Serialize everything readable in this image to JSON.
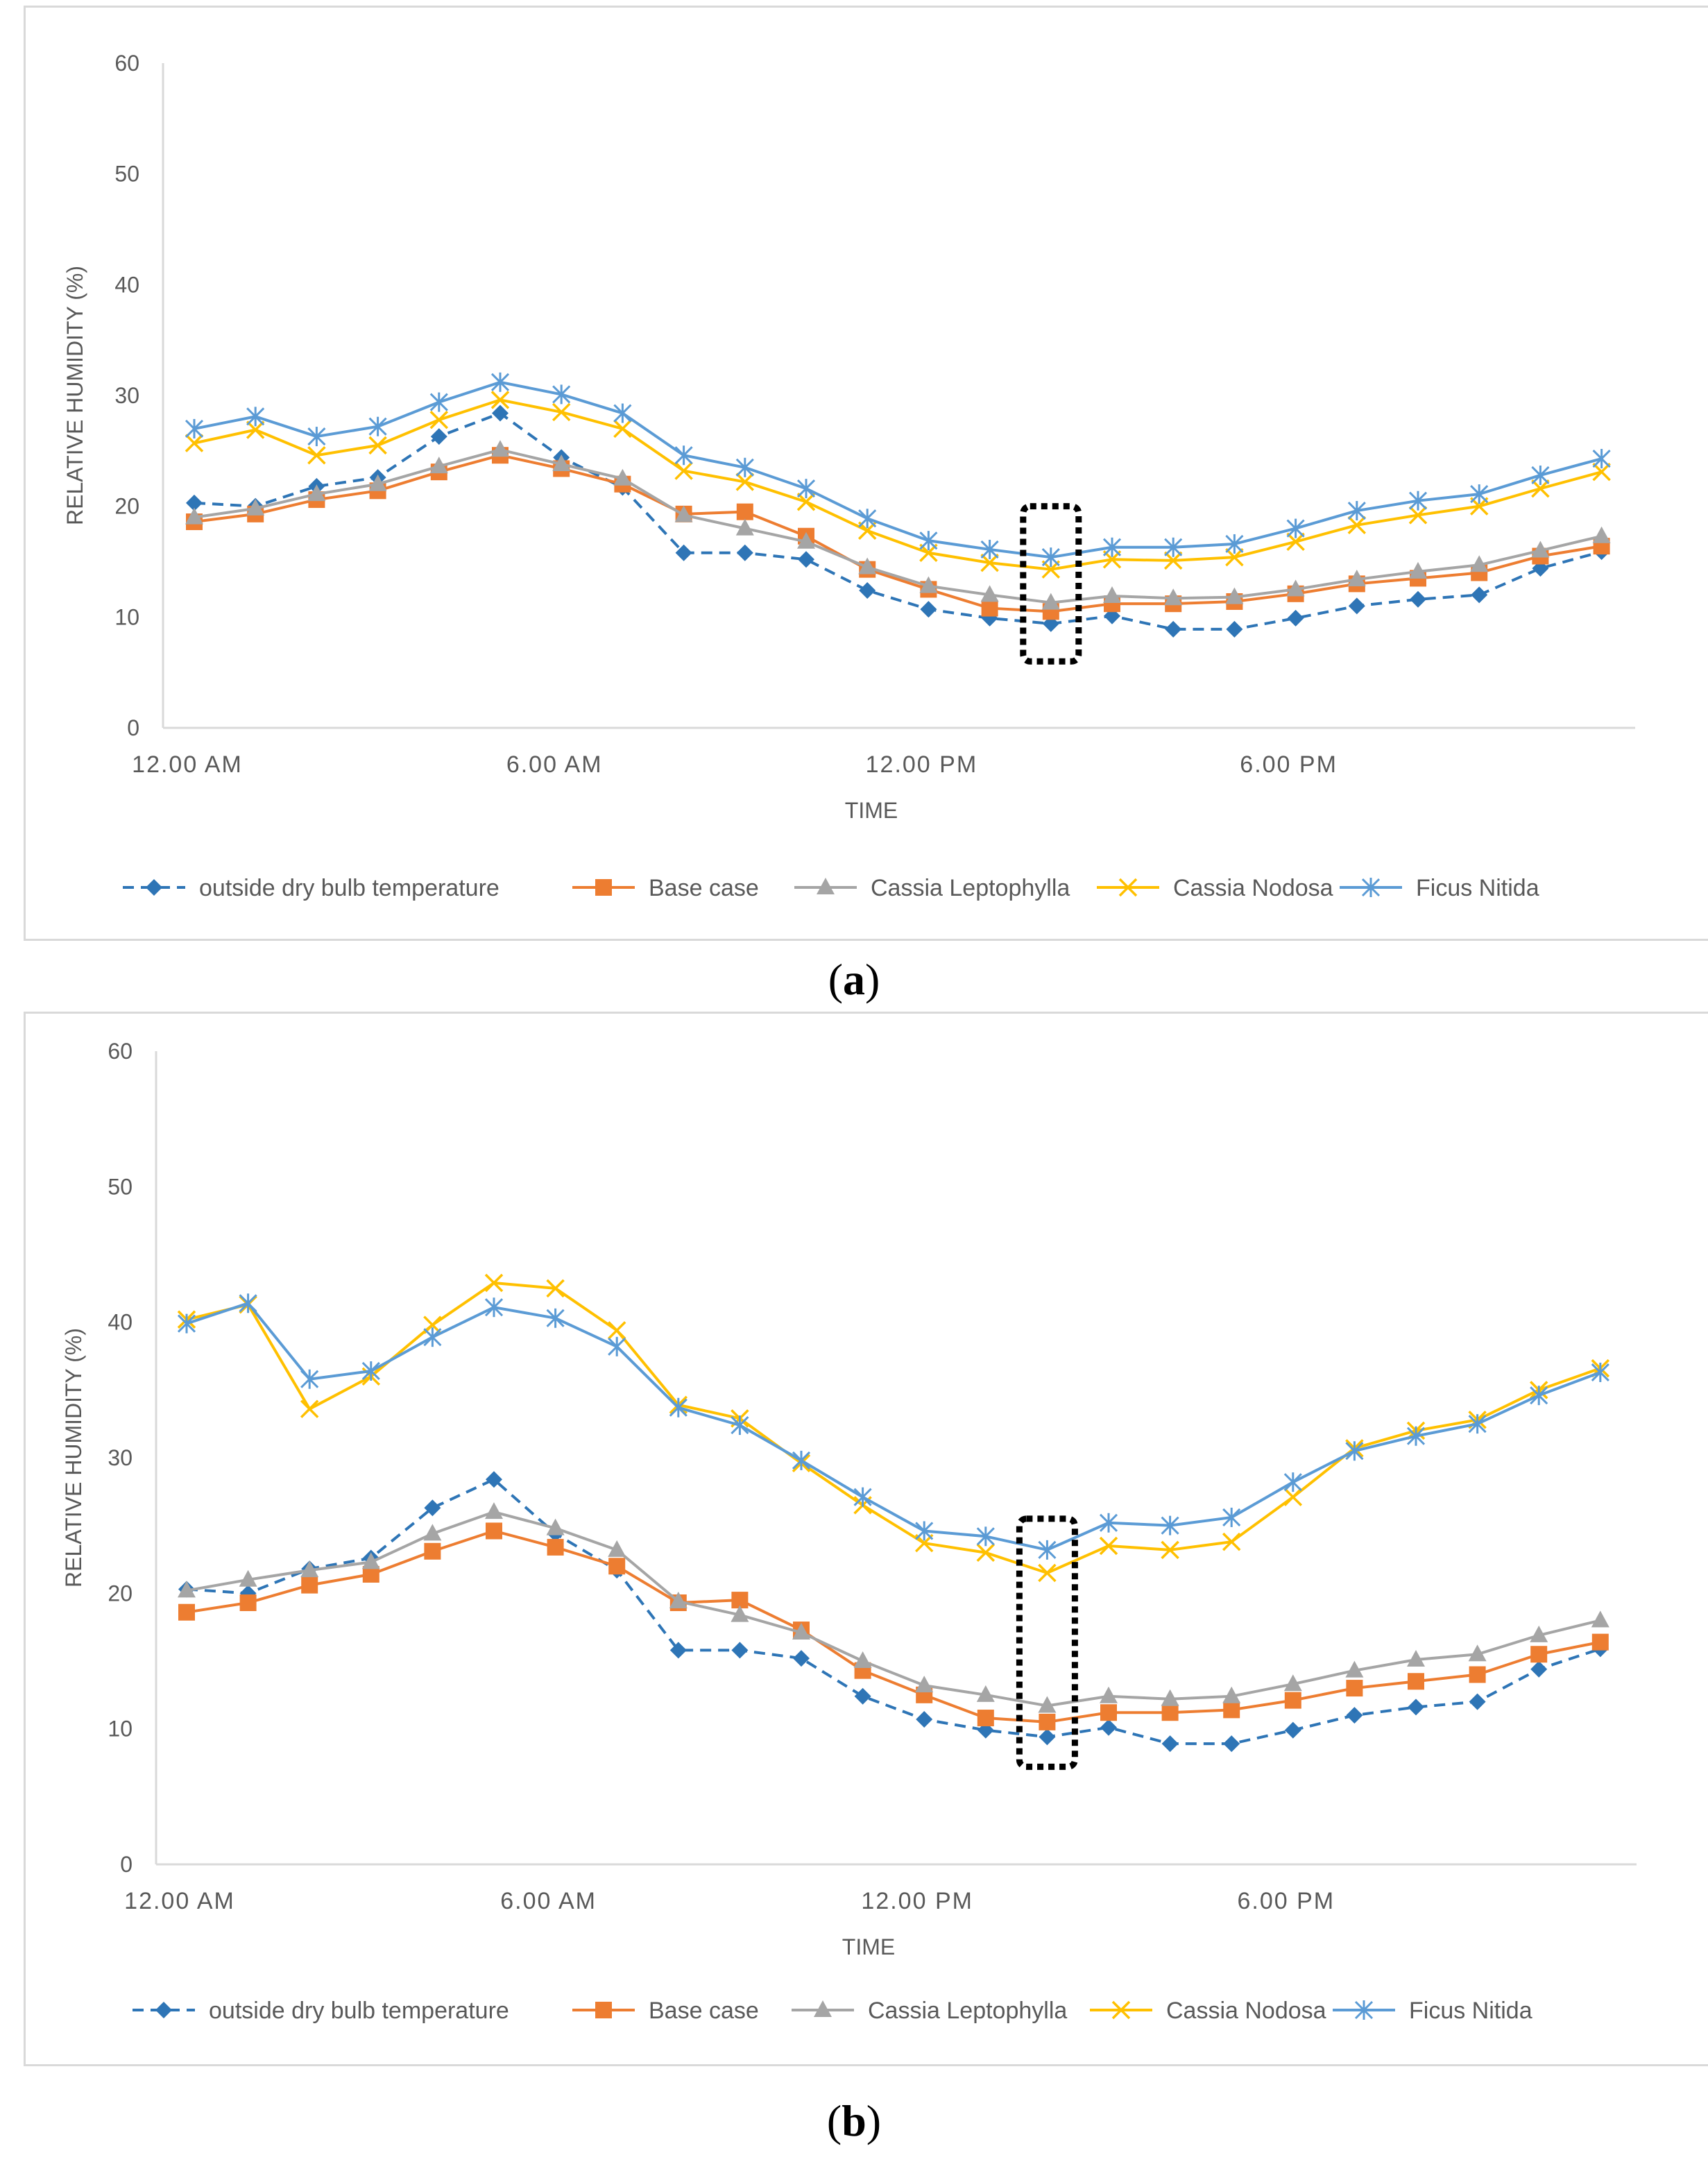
{
  "chart_data": [
    {
      "type": "line",
      "id": "a",
      "caption_letter": "a",
      "ylabel": "RELATIVE HUMIDITY (%)",
      "xlabel": "TIME",
      "ylim": [
        0,
        60
      ],
      "yticks": [
        0,
        10,
        20,
        30,
        40,
        50,
        60
      ],
      "xtick_labels": [
        {
          "index": 0,
          "label": "12.00 AM"
        },
        {
          "index": 6,
          "label": "6.00 AM"
        },
        {
          "index": 12,
          "label": "12.00 PM"
        },
        {
          "index": 18,
          "label": "6.00 PM"
        }
      ],
      "x": [
        0,
        1,
        2,
        3,
        4,
        5,
        6,
        7,
        8,
        9,
        10,
        11,
        12,
        13,
        14,
        15,
        16,
        17,
        18,
        19,
        20,
        21,
        22,
        23
      ],
      "highlight_index": 14,
      "highlight_range": [
        6,
        20
      ],
      "series": [
        {
          "name": "outside dry bulb temperature",
          "color": "#2e75b6",
          "marker": "diamond",
          "dashed": true,
          "values": [
            20.3,
            20.0,
            21.8,
            22.6,
            26.3,
            28.4,
            24.4,
            21.7,
            15.8,
            15.8,
            15.2,
            12.4,
            10.7,
            9.9,
            9.4,
            10.1,
            8.9,
            8.9,
            9.9,
            11.0,
            11.6,
            12.0,
            14.4,
            15.9
          ]
        },
        {
          "name": "Base case",
          "color": "#ed7d31",
          "marker": "square",
          "dashed": false,
          "values": [
            18.6,
            19.3,
            20.6,
            21.4,
            23.1,
            24.6,
            23.4,
            22.0,
            19.3,
            19.5,
            17.3,
            14.3,
            12.5,
            10.8,
            10.5,
            11.2,
            11.2,
            11.4,
            12.1,
            13.0,
            13.5,
            14.0,
            15.5,
            16.4
          ]
        },
        {
          "name": "Cassia Leptophylla",
          "color": "#a5a5a5",
          "marker": "triangle",
          "dashed": false,
          "values": [
            19.0,
            19.8,
            21.1,
            22.0,
            23.6,
            25.1,
            23.8,
            22.5,
            19.2,
            18.0,
            16.8,
            14.5,
            12.8,
            12.0,
            11.3,
            11.9,
            11.7,
            11.8,
            12.5,
            13.4,
            14.1,
            14.7,
            16.0,
            17.3
          ]
        },
        {
          "name": "Cassia Nodosa",
          "color": "#ffc000",
          "marker": "x",
          "dashed": false,
          "values": [
            25.7,
            26.9,
            24.6,
            25.5,
            27.8,
            29.6,
            28.5,
            27.0,
            23.2,
            22.2,
            20.4,
            17.8,
            15.8,
            14.9,
            14.3,
            15.2,
            15.1,
            15.4,
            16.8,
            18.3,
            19.2,
            20.0,
            21.6,
            23.1
          ]
        },
        {
          "name": "Ficus Nitida",
          "color": "#5b9bd5",
          "marker": "star",
          "dashed": false,
          "values": [
            27.0,
            28.1,
            26.3,
            27.2,
            29.4,
            31.2,
            30.1,
            28.4,
            24.6,
            23.5,
            21.6,
            18.9,
            16.9,
            16.1,
            15.4,
            16.3,
            16.3,
            16.6,
            18.0,
            19.6,
            20.5,
            21.1,
            22.8,
            24.3
          ]
        }
      ]
    },
    {
      "type": "line",
      "id": "b",
      "caption_letter": "b",
      "ylabel": "RELATIVE HUMIDITY (%)",
      "xlabel": "TIME",
      "ylim": [
        0,
        60
      ],
      "yticks": [
        0,
        10,
        20,
        30,
        40,
        50,
        60
      ],
      "xtick_labels": [
        {
          "index": 0,
          "label": "12.00 AM"
        },
        {
          "index": 6,
          "label": "6.00 AM"
        },
        {
          "index": 12,
          "label": "12.00 PM"
        },
        {
          "index": 18,
          "label": "6.00 PM"
        }
      ],
      "x": [
        0,
        1,
        2,
        3,
        4,
        5,
        6,
        7,
        8,
        9,
        10,
        11,
        12,
        13,
        14,
        15,
        16,
        17,
        18,
        19,
        20,
        21,
        22,
        23
      ],
      "highlight_index": 14,
      "highlight_range": [
        7.2,
        25.5
      ],
      "series": [
        {
          "name": "outside dry bulb temperature",
          "color": "#2e75b6",
          "marker": "diamond",
          "dashed": true,
          "values": [
            20.3,
            20.0,
            21.8,
            22.6,
            26.3,
            28.4,
            24.4,
            21.7,
            15.8,
            15.8,
            15.2,
            12.4,
            10.7,
            9.9,
            9.4,
            10.1,
            8.9,
            8.9,
            9.9,
            11.0,
            11.6,
            12.0,
            14.4,
            15.9
          ]
        },
        {
          "name": "Base case",
          "color": "#ed7d31",
          "marker": "square",
          "dashed": false,
          "values": [
            18.6,
            19.3,
            20.6,
            21.4,
            23.1,
            24.6,
            23.4,
            22.0,
            19.3,
            19.5,
            17.3,
            14.3,
            12.5,
            10.8,
            10.5,
            11.2,
            11.2,
            11.4,
            12.1,
            13.0,
            13.5,
            14.0,
            15.5,
            16.4
          ]
        },
        {
          "name": "Cassia Leptophylla",
          "color": "#a5a5a5",
          "marker": "triangle",
          "dashed": false,
          "values": [
            20.2,
            21.0,
            21.7,
            22.3,
            24.4,
            26.0,
            24.8,
            23.2,
            19.4,
            18.4,
            17.1,
            15.0,
            13.2,
            12.5,
            11.7,
            12.4,
            12.2,
            12.4,
            13.3,
            14.3,
            15.1,
            15.5,
            16.9,
            18.0
          ]
        },
        {
          "name": "Cassia Nodosa",
          "color": "#ffc000",
          "marker": "x",
          "dashed": false,
          "values": [
            40.2,
            41.3,
            33.6,
            36.0,
            39.8,
            42.9,
            42.5,
            39.4,
            33.9,
            32.9,
            29.6,
            26.5,
            23.7,
            23.0,
            21.5,
            23.5,
            23.2,
            23.8,
            27.1,
            30.7,
            32.0,
            32.8,
            35.0,
            36.6
          ]
        },
        {
          "name": "Ficus Nitida",
          "color": "#5b9bd5",
          "marker": "star",
          "dashed": false,
          "values": [
            39.9,
            41.4,
            35.8,
            36.4,
            38.9,
            41.1,
            40.3,
            38.2,
            33.7,
            32.4,
            29.8,
            27.1,
            24.6,
            24.2,
            23.2,
            25.2,
            25.0,
            25.6,
            28.2,
            30.5,
            31.6,
            32.5,
            34.6,
            36.3
          ]
        }
      ]
    }
  ]
}
